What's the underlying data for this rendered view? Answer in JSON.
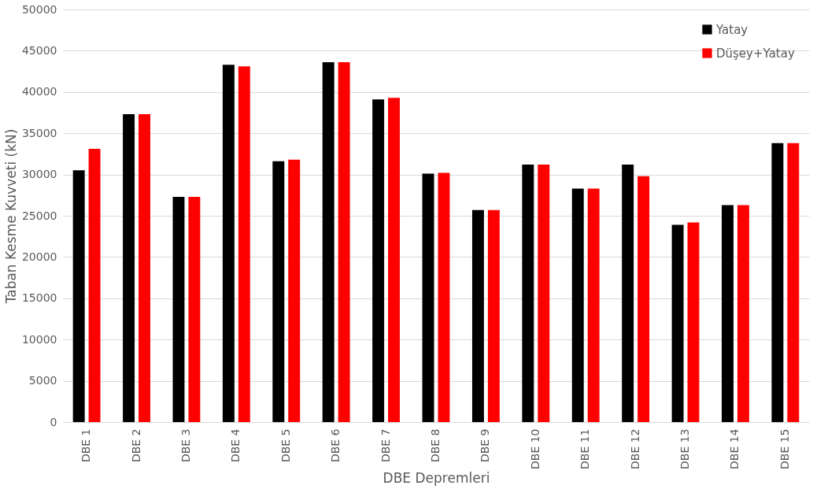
{
  "chart_data": {
    "type": "bar",
    "xlabel": "DBE Depremleri",
    "ylabel": "Taban Kesme Kuvveti (kN)",
    "categories": [
      "DBE 1",
      "DBE 2",
      "DBE 3",
      "DBE 4",
      "DBE 5",
      "DBE 6",
      "DBE 7",
      "DBE 8",
      "DBE 9",
      "DBE 10",
      "DBE 11",
      "DBE 12",
      "DBE 13",
      "DBE 14",
      "DBE 15"
    ],
    "series": [
      {
        "name": "Yatay",
        "color": "#000000",
        "values": [
          30500,
          37300,
          27300,
          43300,
          31600,
          43600,
          39100,
          30100,
          25700,
          31200,
          28300,
          31200,
          23900,
          26300,
          33800
        ]
      },
      {
        "name": "Düşey+Yatay",
        "color": "#ff0000",
        "values": [
          33100,
          37300,
          27300,
          43100,
          31800,
          43600,
          39300,
          30200,
          25700,
          31200,
          28300,
          29800,
          24200,
          26300,
          33800
        ]
      }
    ],
    "ylim": [
      0,
      50000
    ],
    "yticks": [
      0,
      5000,
      10000,
      15000,
      20000,
      25000,
      30000,
      35000,
      40000,
      45000,
      50000
    ],
    "grid": "y",
    "legend": "top right"
  }
}
